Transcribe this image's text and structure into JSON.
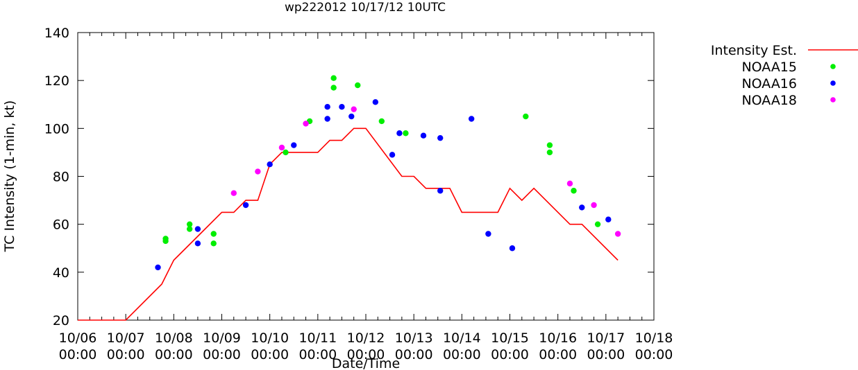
{
  "chart_data": {
    "type": "line",
    "title": "wp222012 10/17/12 10UTC",
    "xlabel": "Date/Time",
    "ylabel": "TC Intensity (1-min, kt)",
    "ylim": [
      20,
      140
    ],
    "y_ticks": [
      20,
      40,
      60,
      80,
      100,
      120,
      140
    ],
    "xlim_days": [
      0,
      12
    ],
    "x_ticks": [
      {
        "day": 0,
        "date": "10/06",
        "time": "00:00"
      },
      {
        "day": 1,
        "date": "10/07",
        "time": "00:00"
      },
      {
        "day": 2,
        "date": "10/08",
        "time": "00:00"
      },
      {
        "day": 3,
        "date": "10/09",
        "time": "00:00"
      },
      {
        "day": 4,
        "date": "10/10",
        "time": "00:00"
      },
      {
        "day": 5,
        "date": "10/11",
        "time": "00:00"
      },
      {
        "day": 6,
        "date": "10/12",
        "time": "00:00"
      },
      {
        "day": 7,
        "date": "10/13",
        "time": "00:00"
      },
      {
        "day": 8,
        "date": "10/14",
        "time": "00:00"
      },
      {
        "day": 9,
        "date": "10/15",
        "time": "00:00"
      },
      {
        "day": 10,
        "date": "10/16",
        "time": "00:00"
      },
      {
        "day": 11,
        "date": "10/17",
        "time": "00:00"
      },
      {
        "day": 12,
        "date": "10/18",
        "time": "00:00"
      }
    ],
    "legend_position": "outside-right",
    "series": [
      {
        "name": "Intensity Est.",
        "kind": "line",
        "color": "#ff0000",
        "points": [
          [
            0.0,
            20
          ],
          [
            1.0,
            20
          ],
          [
            1.75,
            35
          ],
          [
            2.0,
            45
          ],
          [
            2.5,
            55
          ],
          [
            3.0,
            65
          ],
          [
            3.25,
            65
          ],
          [
            3.5,
            70
          ],
          [
            3.75,
            70
          ],
          [
            4.0,
            85
          ],
          [
            4.25,
            90
          ],
          [
            5.0,
            90
          ],
          [
            5.25,
            95
          ],
          [
            5.5,
            95
          ],
          [
            5.75,
            100
          ],
          [
            6.0,
            100
          ],
          [
            6.75,
            80
          ],
          [
            7.0,
            80
          ],
          [
            7.25,
            75
          ],
          [
            7.75,
            75
          ],
          [
            8.0,
            65
          ],
          [
            8.75,
            65
          ],
          [
            9.0,
            75
          ],
          [
            9.25,
            70
          ],
          [
            9.5,
            75
          ],
          [
            10.25,
            60
          ],
          [
            10.5,
            60
          ],
          [
            11.25,
            45
          ]
        ]
      },
      {
        "name": "NOAA15",
        "kind": "points",
        "color": "#00ee00",
        "points": [
          [
            1.83,
            54
          ],
          [
            1.83,
            53
          ],
          [
            2.33,
            60
          ],
          [
            2.33,
            58
          ],
          [
            2.83,
            56
          ],
          [
            2.83,
            52
          ],
          [
            4.33,
            90
          ],
          [
            4.83,
            103
          ],
          [
            5.33,
            121
          ],
          [
            5.33,
            117
          ],
          [
            5.83,
            118
          ],
          [
            6.33,
            103
          ],
          [
            6.83,
            98
          ],
          [
            9.33,
            105
          ],
          [
            9.83,
            93
          ],
          [
            9.83,
            90
          ],
          [
            10.33,
            74
          ],
          [
            10.83,
            60
          ]
        ]
      },
      {
        "name": "NOAA16",
        "kind": "points",
        "color": "#0000ff",
        "points": [
          [
            1.67,
            42
          ],
          [
            2.5,
            58
          ],
          [
            2.5,
            52
          ],
          [
            3.5,
            68
          ],
          [
            4.0,
            85
          ],
          [
            4.5,
            93
          ],
          [
            5.2,
            109
          ],
          [
            5.2,
            104
          ],
          [
            5.5,
            109
          ],
          [
            5.7,
            105
          ],
          [
            6.2,
            111
          ],
          [
            6.55,
            89
          ],
          [
            6.7,
            98
          ],
          [
            7.2,
            97
          ],
          [
            7.55,
            96
          ],
          [
            7.55,
            74
          ],
          [
            8.2,
            104
          ],
          [
            8.55,
            56
          ],
          [
            9.05,
            50
          ],
          [
            10.5,
            67
          ],
          [
            11.05,
            62
          ]
        ]
      },
      {
        "name": "NOAA18",
        "kind": "points",
        "color": "#ff00ff",
        "points": [
          [
            3.25,
            73
          ],
          [
            3.75,
            82
          ],
          [
            4.25,
            92
          ],
          [
            4.75,
            102
          ],
          [
            5.75,
            108
          ],
          [
            10.25,
            77
          ],
          [
            10.75,
            68
          ],
          [
            11.25,
            56
          ]
        ]
      }
    ]
  }
}
